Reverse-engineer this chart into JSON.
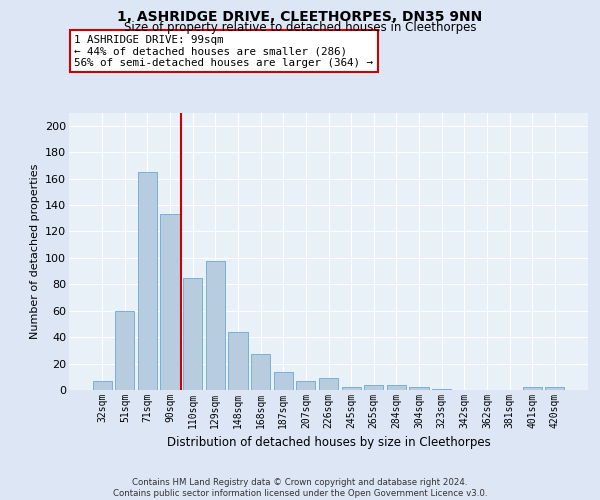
{
  "title": "1, ASHRIDGE DRIVE, CLEETHORPES, DN35 9NN",
  "subtitle": "Size of property relative to detached houses in Cleethorpes",
  "xlabel": "Distribution of detached houses by size in Cleethorpes",
  "ylabel": "Number of detached properties",
  "categories": [
    "32sqm",
    "51sqm",
    "71sqm",
    "90sqm",
    "110sqm",
    "129sqm",
    "148sqm",
    "168sqm",
    "187sqm",
    "207sqm",
    "226sqm",
    "245sqm",
    "265sqm",
    "284sqm",
    "304sqm",
    "323sqm",
    "342sqm",
    "362sqm",
    "381sqm",
    "401sqm",
    "420sqm"
  ],
  "values": [
    7,
    60,
    165,
    133,
    85,
    98,
    44,
    27,
    14,
    7,
    9,
    2,
    4,
    4,
    2,
    1,
    0,
    0,
    0,
    2,
    2
  ],
  "bar_color": "#b8ccdf",
  "bar_edge_color": "#7aafd4",
  "vline_x": 3.5,
  "vline_color": "#cc0000",
  "annotation_text": "1 ASHRIDGE DRIVE: 99sqm\n← 44% of detached houses are smaller (286)\n56% of semi-detached houses are larger (364) →",
  "annotation_box_color": "#ffffff",
  "annotation_box_edge_color": "#cc0000",
  "bg_color": "#dce6f5",
  "plot_bg_color": "#e8f0f8",
  "footer": "Contains HM Land Registry data © Crown copyright and database right 2024.\nContains public sector information licensed under the Open Government Licence v3.0.",
  "ylim": [
    0,
    210
  ],
  "yticks": [
    0,
    20,
    40,
    60,
    80,
    100,
    120,
    140,
    160,
    180,
    200
  ]
}
